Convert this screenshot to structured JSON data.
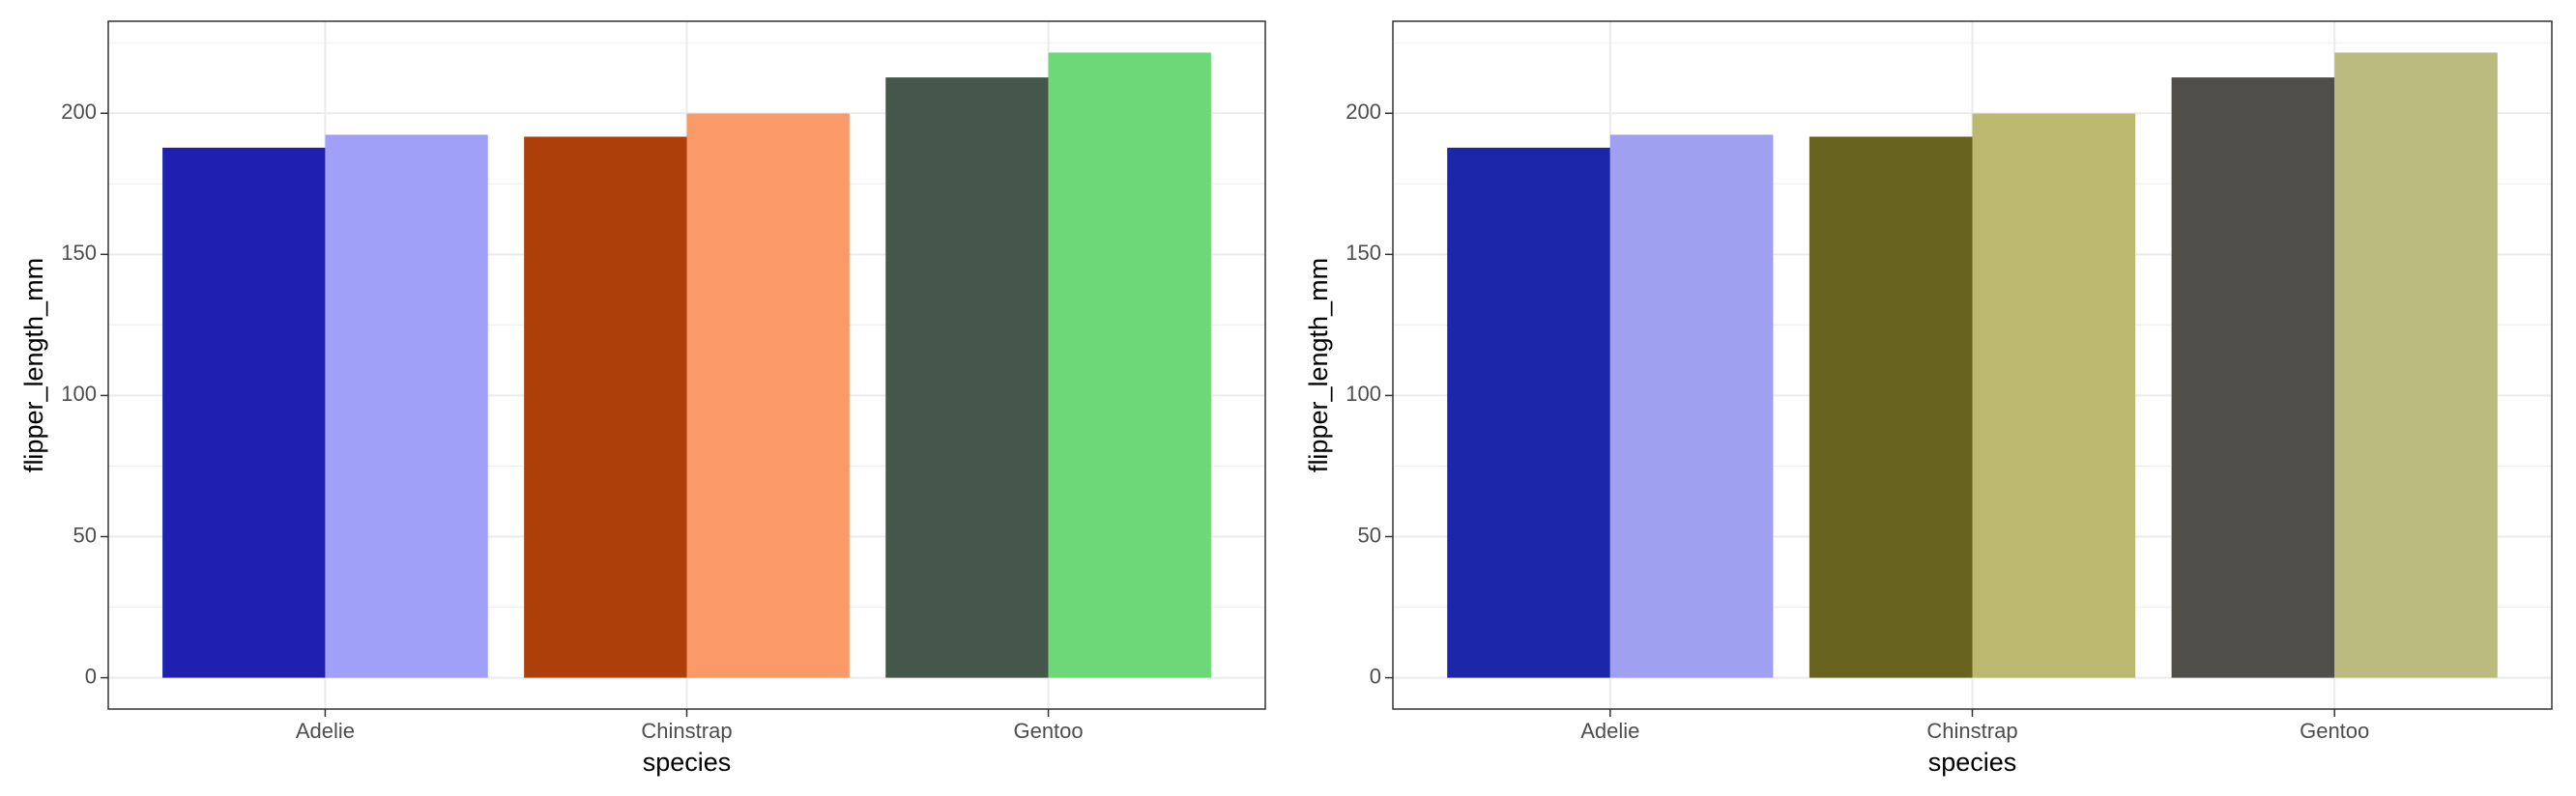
{
  "chart_data": [
    {
      "type": "bar",
      "categories": [
        "Adelie",
        "Chinstrap",
        "Gentoo"
      ],
      "series": [
        {
          "colors": [
            "#1f1fb0",
            "#ad3f0b",
            "#45574a"
          ],
          "values": [
            187.8,
            191.7,
            212.7
          ]
        },
        {
          "colors": [
            "#a0a0f8",
            "#fa9a68",
            "#6cd878"
          ],
          "values": [
            192.4,
            199.9,
            221.5
          ]
        }
      ],
      "xlabel": "species",
      "ylabel": "flipper_length_mm",
      "ylim": [
        -11.1,
        232.6
      ],
      "yticks": [
        0,
        50,
        100,
        150,
        200
      ],
      "yticks_minor": [
        25,
        75,
        125,
        175,
        225
      ],
      "grid": true
    },
    {
      "type": "bar",
      "categories": [
        "Adelie",
        "Chinstrap",
        "Gentoo"
      ],
      "series": [
        {
          "colors": [
            "#1c26a8",
            "#68641f",
            "#4f4e49"
          ],
          "values": [
            187.8,
            191.7,
            212.7
          ]
        },
        {
          "colors": [
            "#a0a0f0",
            "#bbb870",
            "#bcbb7f"
          ],
          "values": [
            192.4,
            199.9,
            221.5
          ]
        }
      ],
      "xlabel": "species",
      "ylabel": "flipper_length_mm",
      "ylim": [
        -11.1,
        232.6
      ],
      "yticks": [
        0,
        50,
        100,
        150,
        200
      ],
      "yticks_minor": [
        25,
        75,
        125,
        175,
        225
      ],
      "grid": true
    }
  ]
}
